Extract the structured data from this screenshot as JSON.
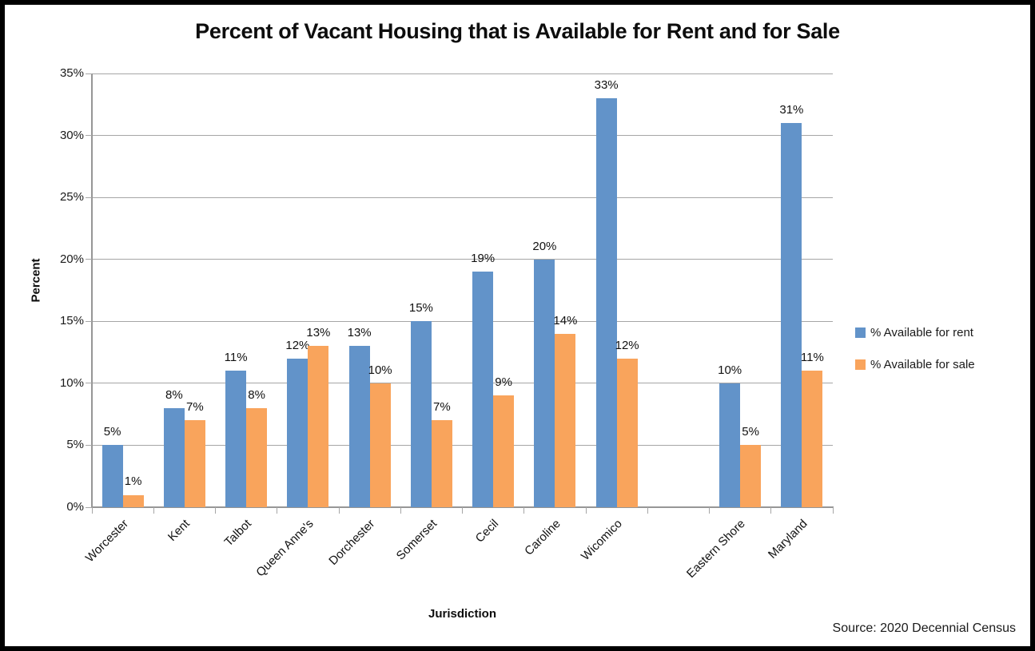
{
  "title": "Percent of Vacant Housing that is Available for Rent and for Sale",
  "source_note": "Source: 2020 Decennial Census",
  "colors": {
    "rent_bar": "#6293C9",
    "sale_bar": "#F9A45C",
    "gridline": "#A6A6A6",
    "axis_line": "#969696",
    "tick": "#A6A6A6",
    "text": "#111111",
    "frame_border": "#000000",
    "background": "#FFFFFF"
  },
  "chart_data": {
    "type": "bar",
    "title": "Percent of Vacant Housing that is Available for Rent and for Sale",
    "xlabel": "Jurisdiction",
    "ylabel": "Percent",
    "ylim": [
      0,
      35
    ],
    "ytick_step": 5,
    "ytick_labels": [
      "0%",
      "5%",
      "10%",
      "15%",
      "20%",
      "25%",
      "30%",
      "35%"
    ],
    "grid": true,
    "legend_position": "right",
    "data_label_format": "{value}%",
    "categories": [
      "Worcester",
      "Kent",
      "Talbot",
      "Queen Anne's",
      "Dorchester",
      "Somerset",
      "Cecil",
      "Caroline",
      "Wicomico",
      "",
      "Eastern Shore",
      "Maryland"
    ],
    "series": [
      {
        "name": "% Available for rent",
        "color": "#6293C9",
        "values": [
          5,
          8,
          11,
          12,
          13,
          15,
          19,
          20,
          33,
          null,
          10,
          31
        ],
        "labels": [
          "5%",
          "8%",
          "11%",
          "12%",
          "13%",
          "15%",
          "19%",
          "20%",
          "33%",
          "",
          "10%",
          "31%"
        ]
      },
      {
        "name": "% Available for sale",
        "color": "#F9A45C",
        "values": [
          1,
          7,
          8,
          13,
          10,
          7,
          9,
          14,
          12,
          null,
          5,
          11
        ],
        "labels": [
          "1%",
          "7%",
          "8%",
          "13%",
          "10%",
          "7%",
          "9%",
          "14%",
          "12%",
          "",
          "5%",
          "11%"
        ]
      }
    ]
  }
}
